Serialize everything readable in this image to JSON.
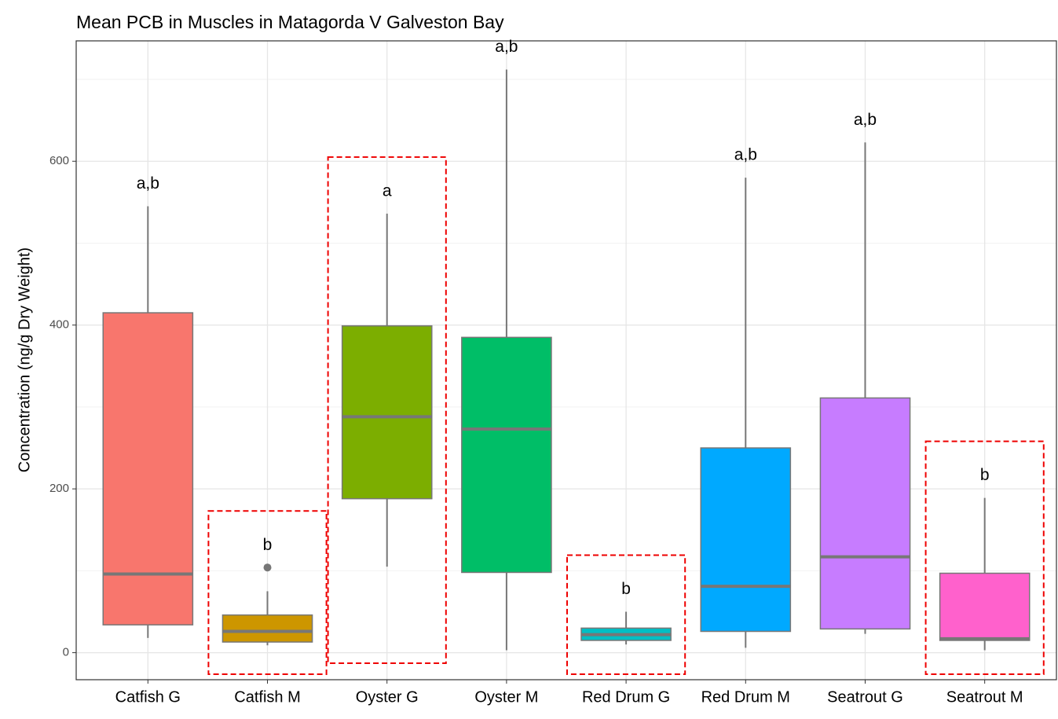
{
  "chart_data": {
    "type": "box",
    "title": "Mean PCB in Muscles in Matagorda V Galveston Bay",
    "y_label": "Concentration (ng/g Dry Weight)",
    "categories": [
      "Catfish G",
      "Catfish M",
      "Oyster G",
      "Oyster M",
      "Red Drum G",
      "Red Drum M",
      "Seatrout G",
      "Seatrout M"
    ],
    "colors": [
      "#F8766D",
      "#CD9600",
      "#7CAE00",
      "#00BE67",
      "#00BFC4",
      "#00A9FF",
      "#C77CFF",
      "#FF61CC"
    ],
    "boxes": [
      {
        "min": 18,
        "q1": 34,
        "median": 96,
        "q3": 415,
        "max": 545,
        "outliers": []
      },
      {
        "min": 9,
        "q1": 13,
        "median": 26,
        "q3": 46,
        "max": 75,
        "outliers": [
          104
        ]
      },
      {
        "min": 105,
        "q1": 188,
        "median": 288,
        "q3": 399,
        "max": 536,
        "outliers": []
      },
      {
        "min": 3,
        "q1": 98,
        "median": 273,
        "q3": 385,
        "max": 712,
        "outliers": []
      },
      {
        "min": 10,
        "q1": 15,
        "median": 22,
        "q3": 30,
        "max": 50,
        "outliers": []
      },
      {
        "min": 6,
        "q1": 26,
        "median": 81,
        "q3": 250,
        "max": 580,
        "outliers": []
      },
      {
        "min": 23,
        "q1": 29,
        "median": 117,
        "q3": 311,
        "max": 623,
        "outliers": []
      },
      {
        "min": 3,
        "q1": 15,
        "median": 17,
        "q3": 97,
        "max": 189,
        "outliers": []
      }
    ],
    "letters": [
      "a,b",
      "b",
      "a",
      "a,b",
      "b",
      "a,b",
      "a,b",
      "b"
    ],
    "highlighted": [
      false,
      true,
      true,
      false,
      true,
      false,
      false,
      true
    ],
    "ylim": [
      -33,
      747
    ],
    "yticks": [
      0,
      200,
      400,
      600
    ],
    "minor_yticks": [
      100,
      300,
      500,
      700
    ],
    "grid": true
  }
}
